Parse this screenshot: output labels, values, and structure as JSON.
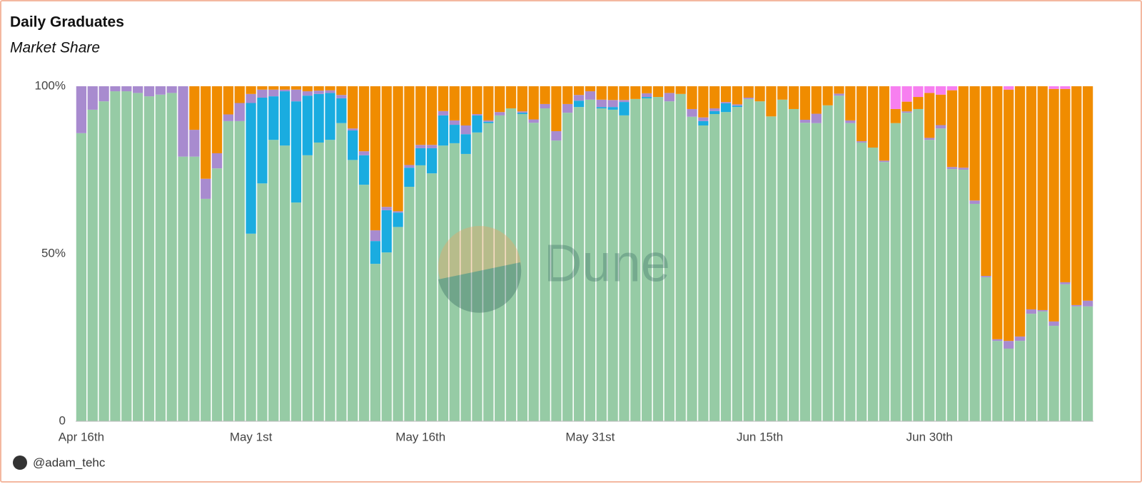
{
  "chart_data": {
    "type": "stacked_bar",
    "title": "Daily Graduates",
    "subtitle": "Market Share",
    "watermark": "Dune",
    "author": "@adam_tehc",
    "categories": [
      "Apr 16th",
      null,
      null,
      null,
      null,
      null,
      null,
      null,
      null,
      null,
      null,
      null,
      null,
      null,
      null,
      "May 1st",
      null,
      null,
      null,
      null,
      null,
      null,
      null,
      null,
      null,
      null,
      null,
      null,
      null,
      null,
      "May 16th",
      null,
      null,
      null,
      null,
      null,
      null,
      null,
      null,
      null,
      null,
      null,
      null,
      null,
      null,
      "May 31st",
      null,
      null,
      null,
      null,
      null,
      null,
      null,
      null,
      null,
      null,
      null,
      null,
      null,
      null,
      "Jun 15th",
      null,
      null,
      null,
      null,
      null,
      null,
      null,
      null,
      null,
      null,
      null,
      null,
      null,
      null,
      "Jun 30th",
      null,
      null,
      null,
      null,
      null,
      null,
      null,
      null,
      null,
      null,
      null,
      null,
      null,
      null
    ],
    "ylim": [
      0,
      100
    ],
    "yticks": [
      0,
      {
        "value": 50,
        "label": "50%"
      },
      {
        "value": 100,
        "label": "100%"
      }
    ],
    "series": [
      {
        "color": "#96cba5",
        "values": [
          86,
          93,
          95.5,
          98.5,
          98.5,
          98,
          97,
          97.5,
          98,
          79,
          79,
          66.4,
          75.5,
          89.6,
          89.6,
          56,
          71,
          84,
          82.3,
          65.3,
          79.4,
          83.2,
          84,
          89,
          78,
          70.6,
          47,
          50.4,
          58,
          70,
          76.4,
          74,
          82.3,
          83,
          79.8,
          86.2,
          89,
          91.3,
          93.4,
          91.7,
          89.1,
          93.4,
          83.8,
          92.1,
          93.8,
          96,
          93.4,
          93,
          91.3,
          96.2,
          96.4,
          96.8,
          95.5,
          97.7,
          90.9,
          88.3,
          91.7,
          92.3,
          93.8,
          96.2,
          95.5,
          91,
          96,
          93.2,
          89.1,
          89,
          94.3,
          97.2,
          89,
          83.2,
          81.7,
          77.4,
          89,
          92.1,
          93.2,
          84,
          87.4,
          75.3,
          75.1,
          64.9,
          43,
          24,
          21.7,
          24,
          32.1,
          32.8,
          28.5,
          40.9,
          34.3,
          34.3
        ]
      },
      {
        "color": "#1aace0",
        "values": [
          0,
          0,
          0,
          0,
          0,
          0,
          0,
          0,
          0,
          0,
          0,
          0,
          0,
          0,
          0,
          39,
          25.6,
          13,
          16.2,
          30.2,
          17.8,
          14.5,
          14,
          7.4,
          8.8,
          8.8,
          6.8,
          12.6,
          4.3,
          5.7,
          5.1,
          7.5,
          9,
          5.5,
          5.9,
          5.1,
          0.4,
          0,
          0,
          0.4,
          0,
          0,
          0,
          0,
          1.9,
          0,
          0.4,
          0.8,
          4,
          0,
          0.4,
          0,
          0,
          0,
          0,
          1.3,
          0.9,
          2.6,
          0.4,
          0,
          0,
          0,
          0,
          0,
          0,
          0,
          0,
          0,
          0,
          0,
          0,
          0,
          0,
          0,
          0,
          0,
          0,
          0,
          0,
          0,
          0,
          0,
          0,
          0,
          0,
          0,
          0,
          0,
          0,
          0
        ]
      },
      {
        "color": "#a88bcf",
        "values": [
          14,
          7,
          4.5,
          1.5,
          1.5,
          2,
          3,
          2.5,
          2,
          21,
          8,
          6,
          4.5,
          2,
          5.4,
          2.7,
          2.4,
          2,
          0.5,
          3.5,
          1.3,
          1,
          0.8,
          1,
          0.6,
          1.2,
          3.2,
          1,
          0.4,
          0.8,
          1,
          1,
          1.3,
          1.3,
          2.6,
          0.4,
          0.4,
          1,
          0,
          0.4,
          1,
          1.3,
          2.8,
          2.6,
          1.7,
          2.5,
          2.2,
          2.1,
          0.6,
          0,
          1.1,
          0,
          2.5,
          0,
          2.3,
          1.1,
          0.8,
          0.4,
          0.4,
          0.4,
          0,
          0,
          0,
          0,
          0.9,
          2.8,
          0,
          0.6,
          0.8,
          0.4,
          0,
          0.4,
          0,
          0.4,
          0,
          0.6,
          1,
          0.6,
          0.6,
          1,
          0.4,
          0.5,
          2.3,
          1.3,
          1.3,
          0.4,
          1.3,
          0.6,
          0.4,
          1.7
        ]
      },
      {
        "color": "#f08c00",
        "values": [
          0,
          0,
          0,
          0,
          0,
          0,
          0,
          0,
          0,
          0,
          13,
          27.6,
          20,
          8.4,
          5,
          2.3,
          1,
          1,
          1,
          1,
          1.5,
          1.3,
          1.2,
          2.6,
          12.6,
          19.4,
          43,
          36,
          37.3,
          23.5,
          17.5,
          17.5,
          7.4,
          10.2,
          11.7,
          8.3,
          10.2,
          7.7,
          6.6,
          7.5,
          9.9,
          5.3,
          13.4,
          5.3,
          2.6,
          1.5,
          4,
          4.1,
          4.1,
          3.8,
          2.1,
          3.2,
          2,
          2.3,
          6.8,
          9.3,
          6.6,
          4.7,
          5.4,
          3.4,
          4.5,
          9,
          4,
          6.8,
          10,
          8.2,
          5.7,
          2.2,
          10.2,
          16.4,
          18.3,
          22.2,
          4.2,
          2.9,
          3.6,
          13.4,
          9.1,
          22.9,
          24.3,
          34.1,
          56.6,
          75.5,
          75,
          74.7,
          66.6,
          66.8,
          69.4,
          57.7,
          65.3,
          64
        ]
      },
      {
        "color": "#f77ff0",
        "values": [
          0,
          0,
          0,
          0,
          0,
          0,
          0,
          0,
          0,
          0,
          0,
          0,
          0,
          0,
          0,
          0,
          0,
          0,
          0,
          0,
          0,
          0,
          0,
          0,
          0,
          0,
          0,
          0,
          0,
          0,
          0,
          0,
          0,
          0,
          0,
          0,
          0,
          0,
          0,
          0,
          0,
          0,
          0,
          0,
          0,
          0,
          0,
          0,
          0,
          0,
          0,
          0,
          0,
          0,
          0,
          0,
          0,
          0,
          0,
          0,
          0,
          0,
          0,
          0,
          0,
          0,
          0,
          0,
          0,
          0,
          0,
          0,
          6.8,
          4.6,
          3.2,
          2,
          2.5,
          1.2,
          0,
          0,
          0,
          0,
          1,
          0,
          0,
          0,
          0.8,
          0.8,
          0,
          0
        ]
      }
    ]
  }
}
